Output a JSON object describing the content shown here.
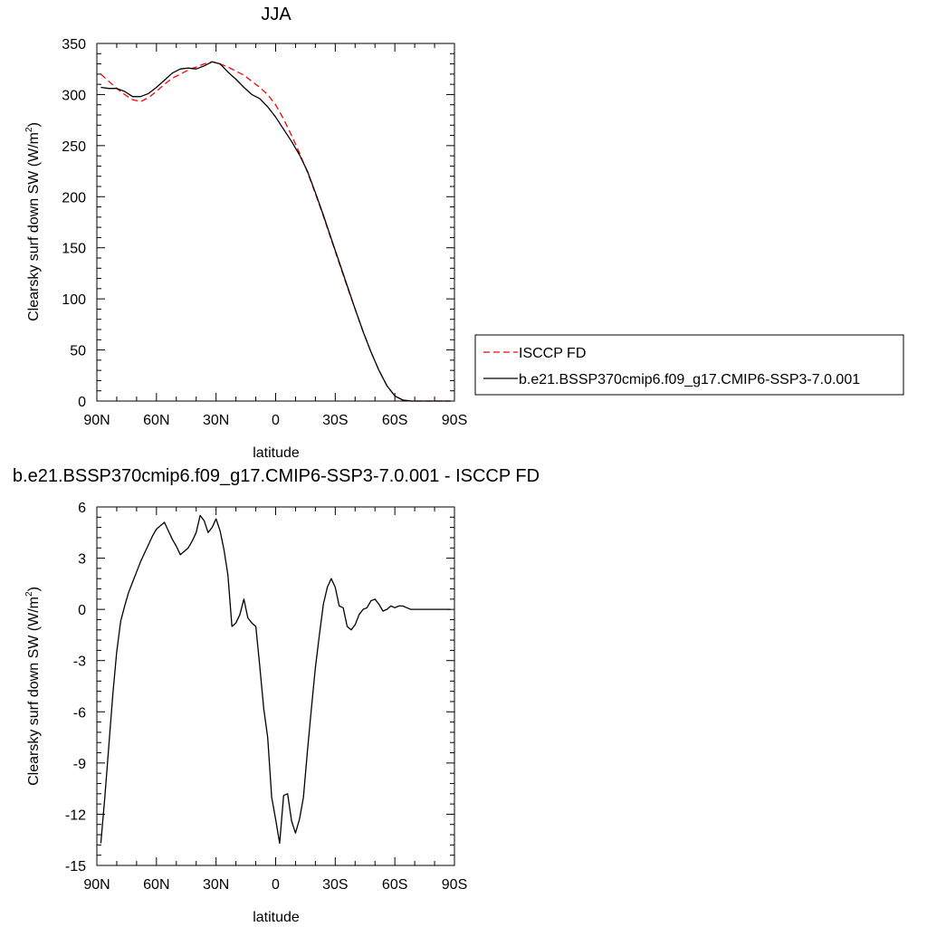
{
  "chart_data": [
    {
      "type": "line",
      "title": "JJA",
      "xlabel": "latitude",
      "ylabel": "Clearsky surf down SW (W/m",
      "ylabel_sup": "2",
      "ylabel_tail": ")",
      "xlim": [
        90,
        -90
      ],
      "ylim": [
        0,
        350
      ],
      "xticks": [
        90,
        60,
        30,
        0,
        -30,
        -60,
        -90
      ],
      "xtick_labels": [
        "90N",
        "60N",
        "30N",
        "0",
        "30S",
        "60S",
        "90S"
      ],
      "yticks": [
        0,
        50,
        100,
        150,
        200,
        250,
        300,
        350
      ],
      "ytick_labels": [
        "0",
        "50",
        "100",
        "150",
        "200",
        "250",
        "300",
        "350"
      ],
      "grid": false,
      "legend_position": "right",
      "series": [
        {
          "name": "ISCCP FD",
          "color": "#ff0000",
          "dash": "dashed",
          "x": [
            88,
            84,
            80,
            76,
            72,
            68,
            64,
            60,
            56,
            52,
            48,
            44,
            40,
            36,
            32,
            28,
            24,
            20,
            16,
            12,
            8,
            4,
            0,
            -4,
            -8,
            -12,
            -16,
            -20,
            -24,
            -28,
            -32,
            -36,
            -40,
            -44,
            -48,
            -52,
            -56,
            -60,
            -64,
            -68,
            -72,
            -76,
            -80,
            -84,
            -88
          ],
          "values": [
            320,
            313,
            306,
            300,
            295,
            293,
            297,
            303,
            310,
            316,
            320,
            324,
            327,
            330,
            332,
            330,
            327,
            323,
            319,
            313,
            307,
            300,
            290,
            276,
            260,
            243,
            224,
            203,
            181,
            158,
            135,
            112,
            90,
            68,
            48,
            30,
            15,
            5,
            1,
            0,
            0,
            0,
            0,
            0,
            0
          ]
        },
        {
          "name": "b.e21.BSSP370cmip6.f09_g17.CMIP6-SSP3-7.0.001",
          "color": "#000000",
          "dash": "solid",
          "x": [
            88,
            84,
            80,
            76,
            72,
            68,
            64,
            60,
            56,
            52,
            48,
            44,
            40,
            36,
            32,
            28,
            24,
            20,
            16,
            12,
            8,
            4,
            0,
            -4,
            -8,
            -12,
            -16,
            -20,
            -24,
            -28,
            -32,
            -36,
            -40,
            -44,
            -48,
            -52,
            -56,
            -60,
            -64,
            -68,
            -72,
            -76,
            -80,
            -84,
            -88
          ],
          "values": [
            307,
            306,
            306,
            303,
            298,
            298,
            301,
            307,
            314,
            321,
            325,
            326,
            325,
            328,
            332,
            330,
            322,
            315,
            307,
            300,
            296,
            288,
            278,
            266,
            254,
            241,
            225,
            204,
            182,
            159,
            136,
            113,
            90,
            68,
            48,
            30,
            15,
            5,
            1,
            0,
            0,
            0,
            0,
            0,
            0
          ]
        }
      ]
    },
    {
      "type": "line",
      "title": "b.e21.BSSP370cmip6.f09_g17.CMIP6-SSP3-7.0.001 - ISCCP FD",
      "xlabel": "latitude",
      "ylabel": "Clearsky surf down SW (W/m",
      "ylabel_sup": "2",
      "ylabel_tail": ")",
      "xlim": [
        90,
        -90
      ],
      "ylim": [
        -15,
        6
      ],
      "xticks": [
        90,
        60,
        30,
        0,
        -30,
        -60,
        -90
      ],
      "xtick_labels": [
        "90N",
        "60N",
        "30N",
        "0",
        "30S",
        "60S",
        "90S"
      ],
      "yticks": [
        -15,
        -12,
        -9,
        -6,
        -3,
        0,
        3,
        6
      ],
      "ytick_labels": [
        "-15",
        "-12",
        "-9",
        "-6",
        "-3",
        "0",
        "3",
        "6"
      ],
      "grid": false,
      "series": [
        {
          "name": "",
          "color": "#000000",
          "dash": "solid",
          "x": [
            88,
            86,
            84,
            82,
            80,
            78,
            76,
            74,
            72,
            70,
            68,
            66,
            64,
            62,
            60,
            58,
            56,
            54,
            52,
            50,
            48,
            46,
            44,
            42,
            40,
            38,
            36,
            34,
            32,
            30,
            28,
            26,
            24,
            22,
            20,
            18,
            16,
            14,
            12,
            10,
            8,
            6,
            4,
            2,
            0,
            -2,
            -4,
            -6,
            -8,
            -10,
            -12,
            -14,
            -16,
            -18,
            -20,
            -22,
            -24,
            -26,
            -28,
            -30,
            -32,
            -34,
            -36,
            -38,
            -40,
            -42,
            -44,
            -46,
            -48,
            -50,
            -52,
            -54,
            -56,
            -58,
            -60,
            -62,
            -64,
            -66,
            -68,
            -70,
            -72,
            -74,
            -76,
            -78,
            -80,
            -82,
            -84,
            -86,
            -88
          ],
          "values": [
            -13.7,
            -11.0,
            -8.0,
            -5.0,
            -2.5,
            -0.7,
            0.2,
            1.0,
            1.6,
            2.2,
            2.8,
            3.3,
            3.8,
            4.3,
            4.7,
            4.9,
            5.1,
            4.6,
            4.1,
            3.7,
            3.2,
            3.4,
            3.6,
            4.0,
            4.5,
            5.5,
            5.2,
            4.5,
            4.8,
            5.3,
            4.6,
            3.5,
            2.0,
            -1.0,
            -0.8,
            -0.3,
            0.6,
            -0.5,
            -0.8,
            -1.0,
            -3.3,
            -5.8,
            -7.5,
            -11.0,
            -12.3,
            -13.7,
            -10.9,
            -10.8,
            -12.4,
            -13.1,
            -12.3,
            -11.0,
            -8.3,
            -5.8,
            -3.4,
            -1.5,
            0.3,
            1.3,
            1.8,
            1.3,
            0.2,
            0.1,
            -1.0,
            -1.2,
            -0.9,
            -0.3,
            0.0,
            0.1,
            0.5,
            0.6,
            0.3,
            -0.1,
            0.0,
            0.2,
            0.1,
            0.2,
            0.2,
            0.1,
            0.0,
            0.0,
            0.0,
            0.0,
            0.0,
            0.0,
            0.0,
            0.0,
            0.0,
            0.0,
            0.0
          ]
        }
      ]
    }
  ],
  "legend": {
    "entries": [
      {
        "label": "ISCCP FD",
        "color": "#ff0000",
        "dash": "dashed"
      },
      {
        "label": "b.e21.BSSP370cmip6.f09_g17.CMIP6-SSP3-7.0.001",
        "color": "#000000",
        "dash": "solid"
      }
    ]
  }
}
